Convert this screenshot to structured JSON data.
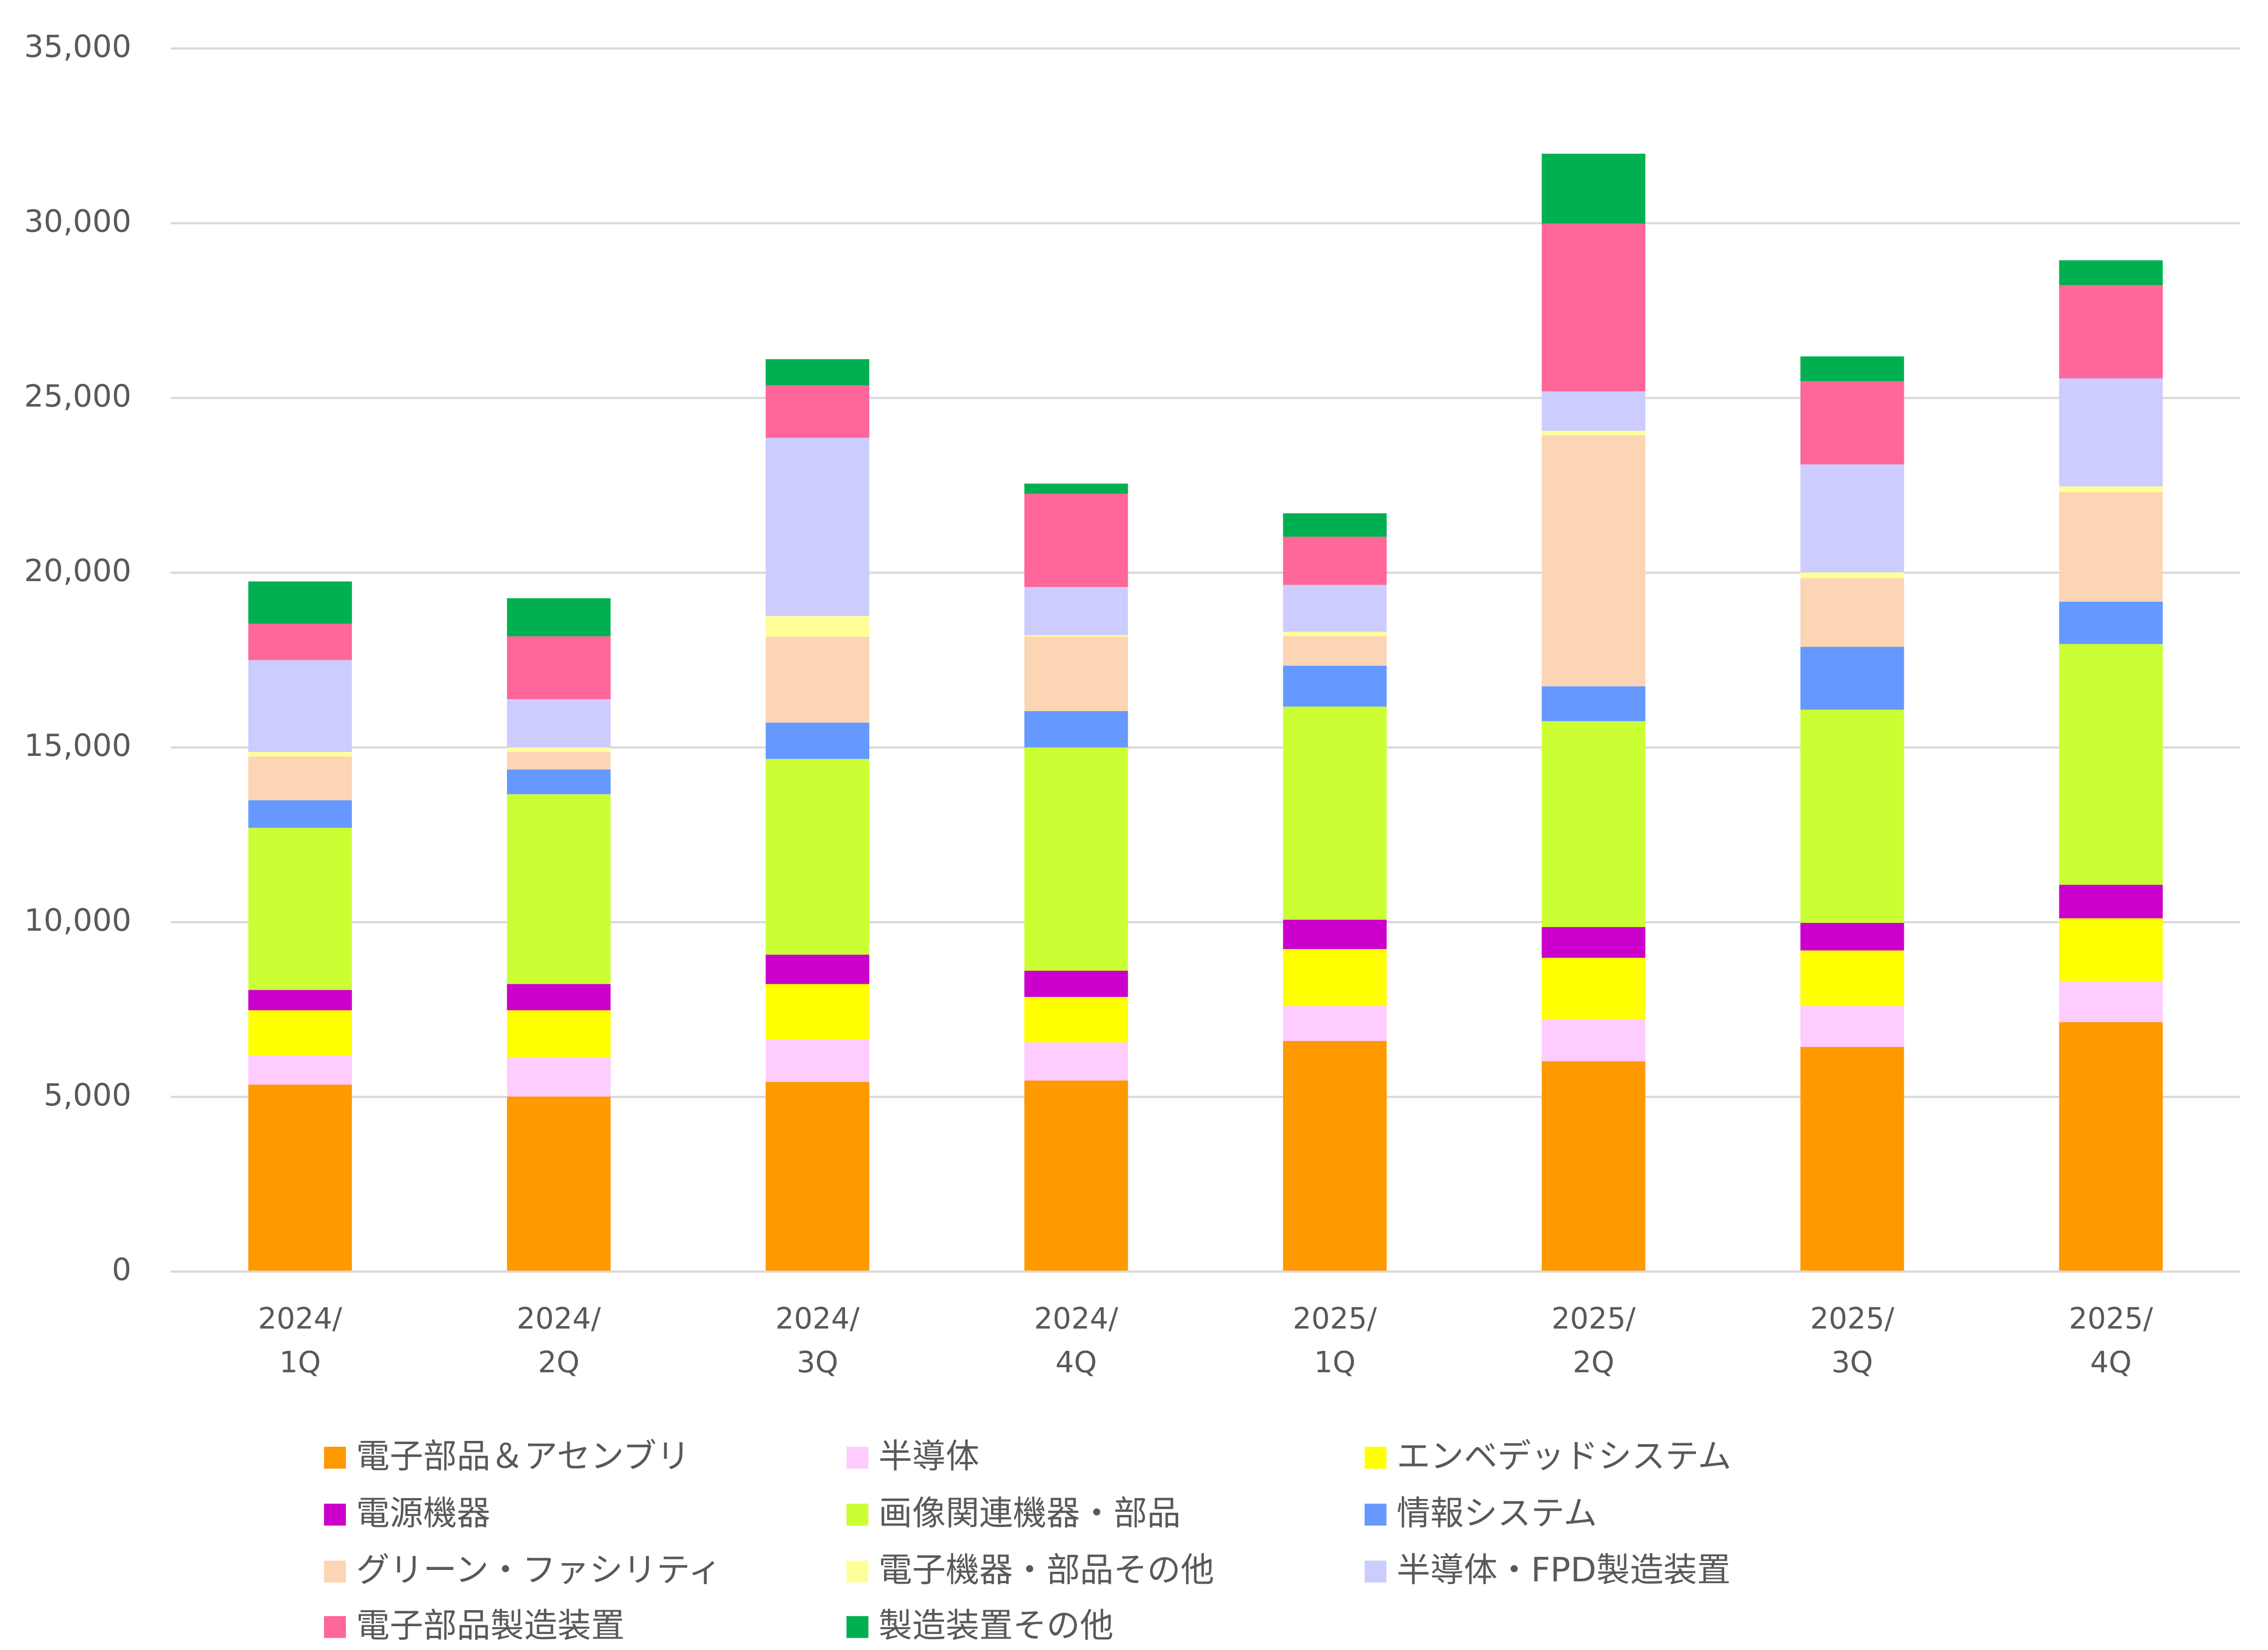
{
  "chart_data": {
    "type": "stacked_bar",
    "categories": [
      "2024/\n1Q",
      "2024/\n2Q",
      "2024/\n3Q",
      "2024/\n4Q",
      "2025/\n1Q",
      "2025/\n2Q",
      "2025/\n3Q",
      "2025/\n4Q"
    ],
    "series": [
      {
        "name": "電子部品＆アセンブリ",
        "color": "#ff9900",
        "values": [
          5350,
          5010,
          5430,
          5470,
          6600,
          6020,
          6430,
          7140
        ]
      },
      {
        "name": "半導体",
        "color": "#ffccff",
        "values": [
          830,
          1130,
          1210,
          1090,
          1000,
          1210,
          1170,
          1170
        ]
      },
      {
        "name": "エンベデッドシステム",
        "color": "#ffff00",
        "values": [
          1300,
          1340,
          1590,
          1300,
          1630,
          1750,
          1590,
          1800
        ]
      },
      {
        "name": "電源機器",
        "color": "#cc00cc",
        "values": [
          580,
          750,
          840,
          750,
          840,
          880,
          790,
          960
        ]
      },
      {
        "name": "画像関連機器・部品",
        "color": "#ccff33",
        "values": [
          4640,
          5430,
          5600,
          6390,
          6100,
          5890,
          6100,
          6890
        ]
      },
      {
        "name": "情報システム",
        "color": "#6699ff",
        "values": [
          790,
          710,
          1040,
          1040,
          1170,
          1000,
          1800,
          1210
        ]
      },
      {
        "name": "グリーン・ファシリティ",
        "color": "#fcd5b4",
        "values": [
          1250,
          500,
          2460,
          2130,
          840,
          7180,
          1960,
          3130
        ]
      },
      {
        "name": "電子機器・部品その他",
        "color": "#ffff99",
        "values": [
          130,
          130,
          590,
          40,
          130,
          130,
          170,
          170
        ]
      },
      {
        "name": "半導体・FPD製造装置",
        "color": "#ccccff",
        "values": [
          2630,
          1380,
          5100,
          1380,
          1340,
          1130,
          3090,
          3090
        ]
      },
      {
        "name": "電子部品製造装置",
        "color": "#ff6699",
        "values": [
          1040,
          1800,
          1500,
          2670,
          1380,
          4800,
          2380,
          2670
        ]
      },
      {
        "name": "製造装置その他",
        "color": "#00b050",
        "values": [
          1210,
          1090,
          750,
          290,
          670,
          2000,
          710,
          710
        ]
      }
    ],
    "ylim": [
      0,
      35000
    ],
    "yticks": [
      0,
      {
        "value": 5000,
        "label": "5,000"
      },
      {
        "value": 10000,
        "label": "10,000"
      },
      {
        "value": 15000,
        "label": "15,000"
      },
      {
        "value": 20000,
        "label": "20,000"
      },
      {
        "value": 25000,
        "label": "25,000"
      },
      {
        "value": 30000,
        "label": "30,000"
      },
      {
        "value": 35000,
        "label": "35,000"
      }
    ],
    "grid": true,
    "legend": "bottom"
  }
}
